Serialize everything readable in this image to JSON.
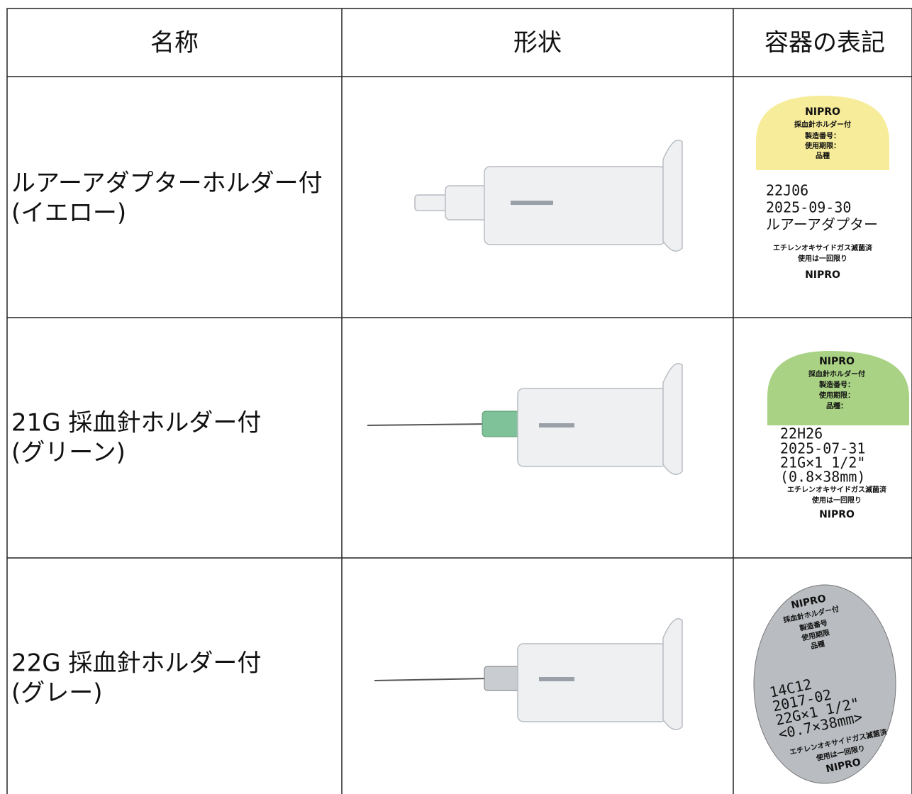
{
  "table": {
    "header": [
      "名称",
      "形状",
      "容器の表記"
    ],
    "rows": [
      {
        "name": [
          "ルアーアダプターホルダー付",
          "(イエロー)"
        ],
        "label": [
          "NIPRO",
          "採血針ホルダー付",
          "製造番号：",
          "使用期限：",
          "品種",
          "22J06",
          "2025-09-30",
          "ルアーアダプター",
          "エチレンオキサイドガス滅菌済",
          "使用は一回限り",
          "NIPRO"
        ]
      },
      {
        "name": [
          "21G 採血針ホルダー付",
          "(グリーン)"
        ],
        "label": [
          "NIPRO",
          "採血針ホルダー付",
          "製造番号：",
          "使用期限：",
          "品種：",
          "22H26",
          "2025-07-31",
          "21G×1 1/2\"",
          "(0.8×38mm)",
          "エチレンオキサイドガス滅菌済",
          "使用は一回限り",
          "NIPRO"
        ]
      },
      {
        "name": [
          "22G 採血針ホルダー付",
          "(グレー)"
        ],
        "label": [
          "NIPRO",
          "採血針ホルダー付",
          "製造番号",
          "使用期限",
          "品種",
          "14C12",
          "2017-02",
          "22G×1 1/2\"",
          "<0.7×38mm>",
          "エチレンオキサイドガス滅菌済",
          "使用は一回限り",
          "NIPRO"
        ]
      }
    ]
  }
}
